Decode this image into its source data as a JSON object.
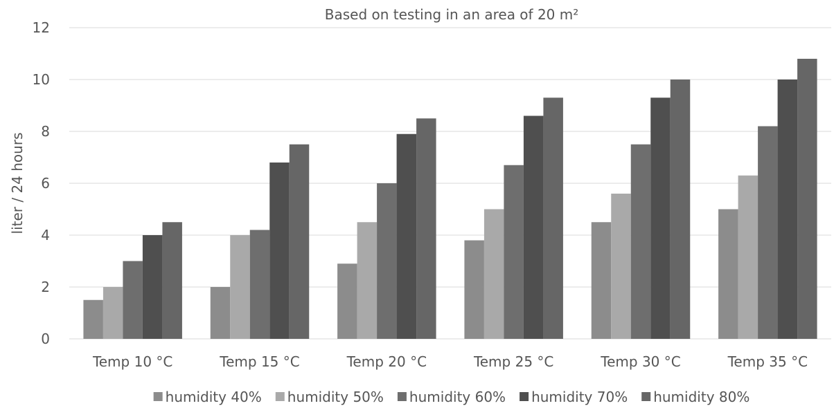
{
  "chart_data": {
    "type": "bar",
    "title": "Based on testing in an area of 20 m²",
    "xlabel": "",
    "ylabel": "liter / 24 hours",
    "ylim": [
      0,
      12
    ],
    "yticks": [
      0,
      2,
      4,
      6,
      8,
      10,
      12
    ],
    "grid": true,
    "legend_position": "bottom",
    "categories": [
      "Temp 10 °C",
      "Temp 15 °C",
      "Temp 20 °C",
      "Temp 25 °C",
      "Temp 30 °C",
      "Temp 35 °C"
    ],
    "series": [
      {
        "name": "humidity 40%",
        "color": "#8c8c8c",
        "values": [
          1.5,
          2.0,
          2.9,
          3.8,
          4.5,
          5.0
        ]
      },
      {
        "name": "humidity 50%",
        "color": "#a9a9a9",
        "values": [
          2.0,
          4.0,
          4.5,
          5.0,
          5.6,
          6.3
        ]
      },
      {
        "name": "humidity 60%",
        "color": "#6e6e6e",
        "values": [
          3.0,
          4.2,
          6.0,
          6.7,
          7.5,
          8.2
        ]
      },
      {
        "name": "humidity 70%",
        "color": "#4f4f4f",
        "values": [
          4.0,
          6.8,
          7.9,
          8.6,
          9.3,
          10.0
        ]
      },
      {
        "name": "humidity 80%",
        "color": "#666666",
        "values": [
          4.5,
          7.5,
          8.5,
          9.3,
          10.0,
          10.8
        ]
      }
    ]
  }
}
